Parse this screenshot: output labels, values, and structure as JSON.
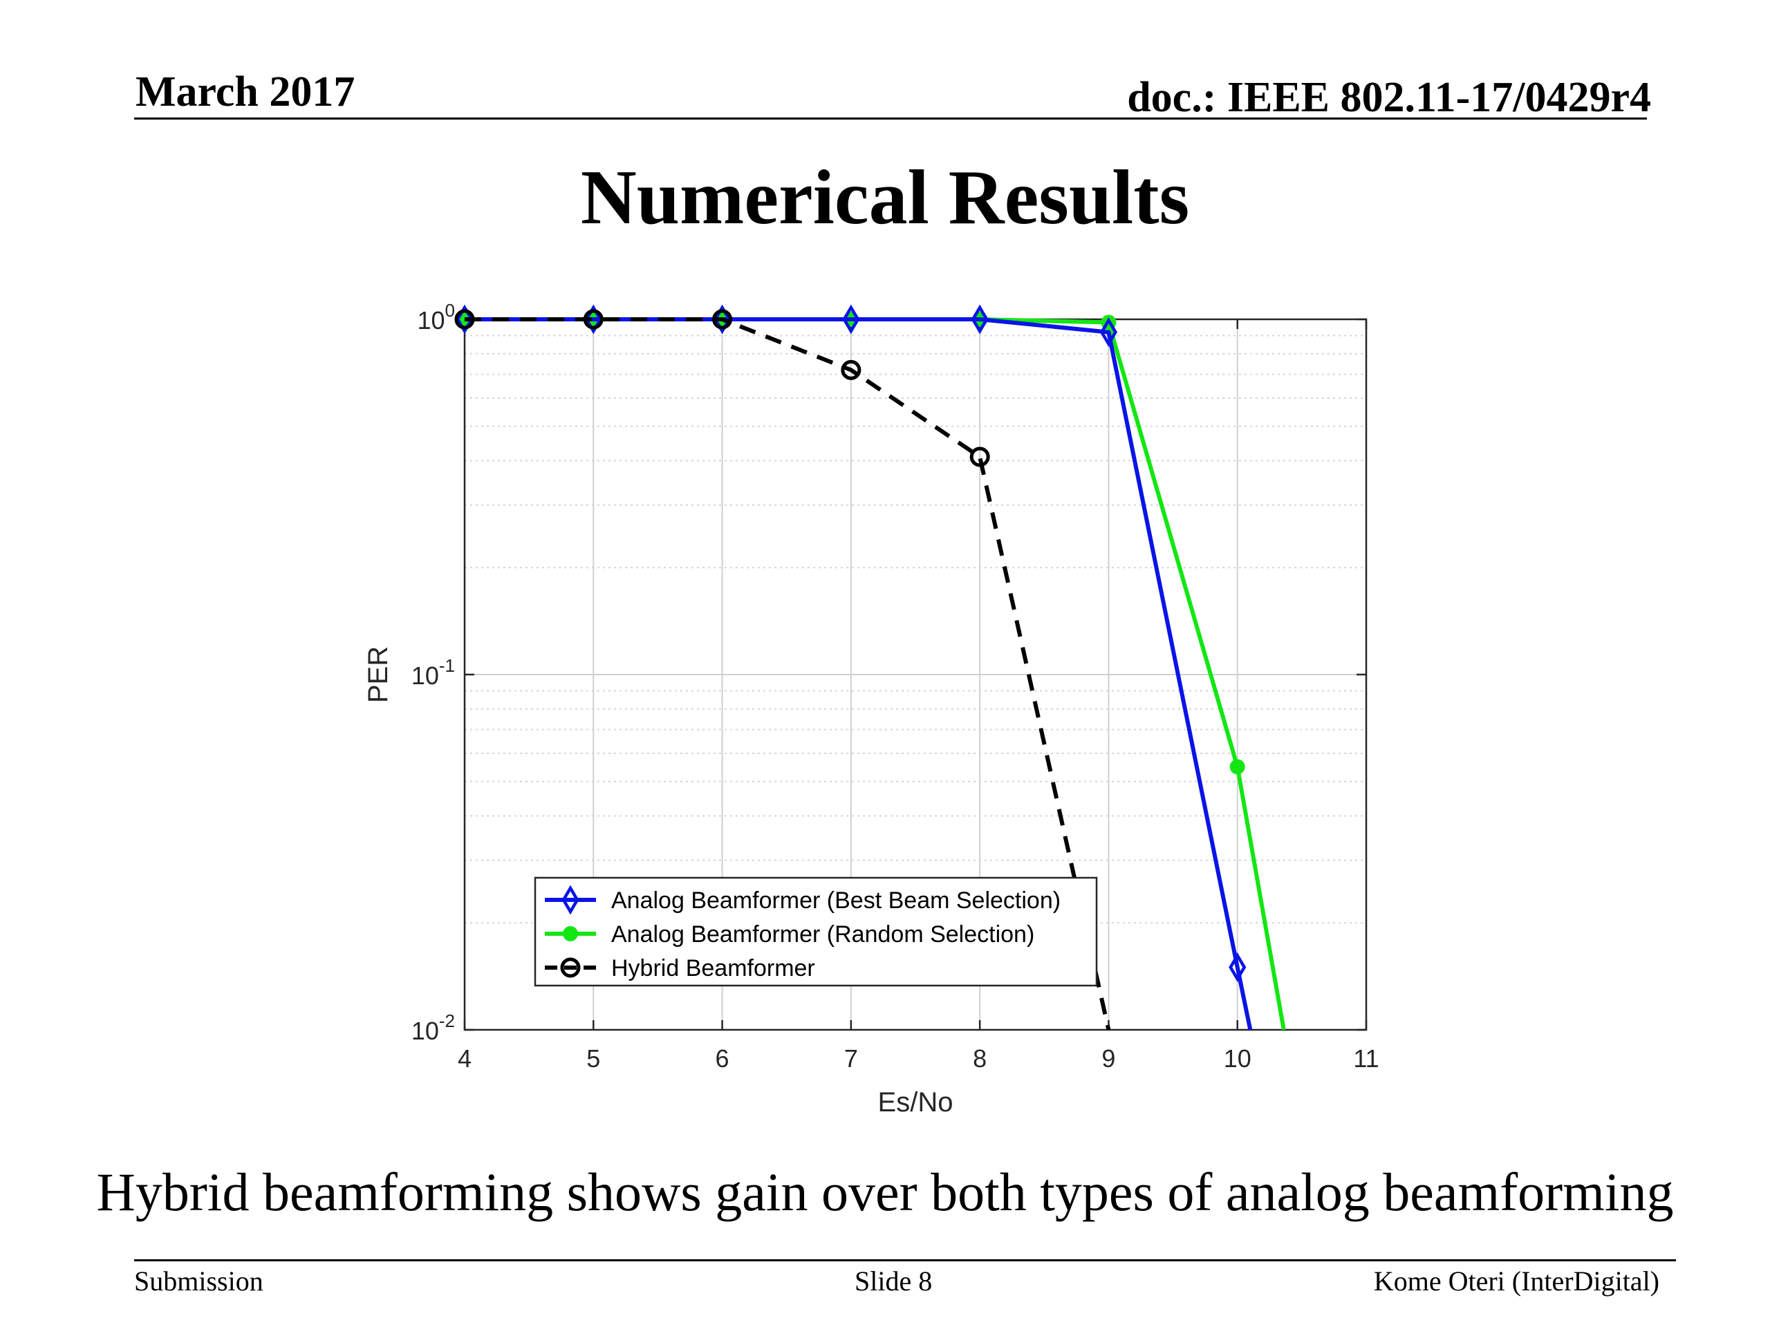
{
  "header": {
    "date": "March 2017",
    "doc": "doc.: IEEE 802.11-17/0429r4"
  },
  "slide_title": "Numerical Results",
  "caption": "Hybrid beamforming shows gain over both types of analog beamforming",
  "footer": {
    "left": "Submission",
    "center": "Slide 8",
    "right": "Kome Oteri (InterDigital)"
  },
  "chart_data": {
    "type": "line",
    "xlabel": "Es/No",
    "ylabel": "PER",
    "xlim": [
      4,
      11
    ],
    "ylim": [
      0.01,
      1
    ],
    "yscale": "log",
    "xticks": [
      4,
      5,
      6,
      7,
      8,
      9,
      10,
      11
    ],
    "yticks": [
      {
        "mant": "10",
        "exp": "-2",
        "value": 0.01
      },
      {
        "mant": "10",
        "exp": "-1",
        "value": 0.1
      },
      {
        "mant": "10",
        "exp": "0",
        "value": 1
      }
    ],
    "grid": true,
    "legend_position": "bottom-left",
    "series": [
      {
        "name": "Analog Beamformer (Best Beam Selection)",
        "color": "#0a14e6",
        "marker": "diamond",
        "dash": "solid",
        "x": [
          4,
          5,
          6,
          7,
          8,
          9,
          10,
          10.1
        ],
        "y": [
          1,
          1,
          1,
          1,
          1,
          0.92,
          0.015,
          0.01
        ]
      },
      {
        "name": "Analog Beamformer (Random Selection)",
        "color": "#14e614",
        "marker": "circle-filled",
        "dash": "solid",
        "x": [
          4,
          5,
          6,
          7,
          8,
          9,
          10,
          10.36
        ],
        "y": [
          1,
          1,
          1,
          1,
          1,
          0.98,
          0.055,
          0.01
        ]
      },
      {
        "name": "Hybrid Beamformer",
        "color": "#000000",
        "marker": "circle-open",
        "dash": "dashed",
        "x": [
          4,
          5,
          6,
          7,
          8,
          9
        ],
        "y": [
          1,
          1,
          1,
          0.72,
          0.41,
          0.01
        ]
      }
    ]
  }
}
